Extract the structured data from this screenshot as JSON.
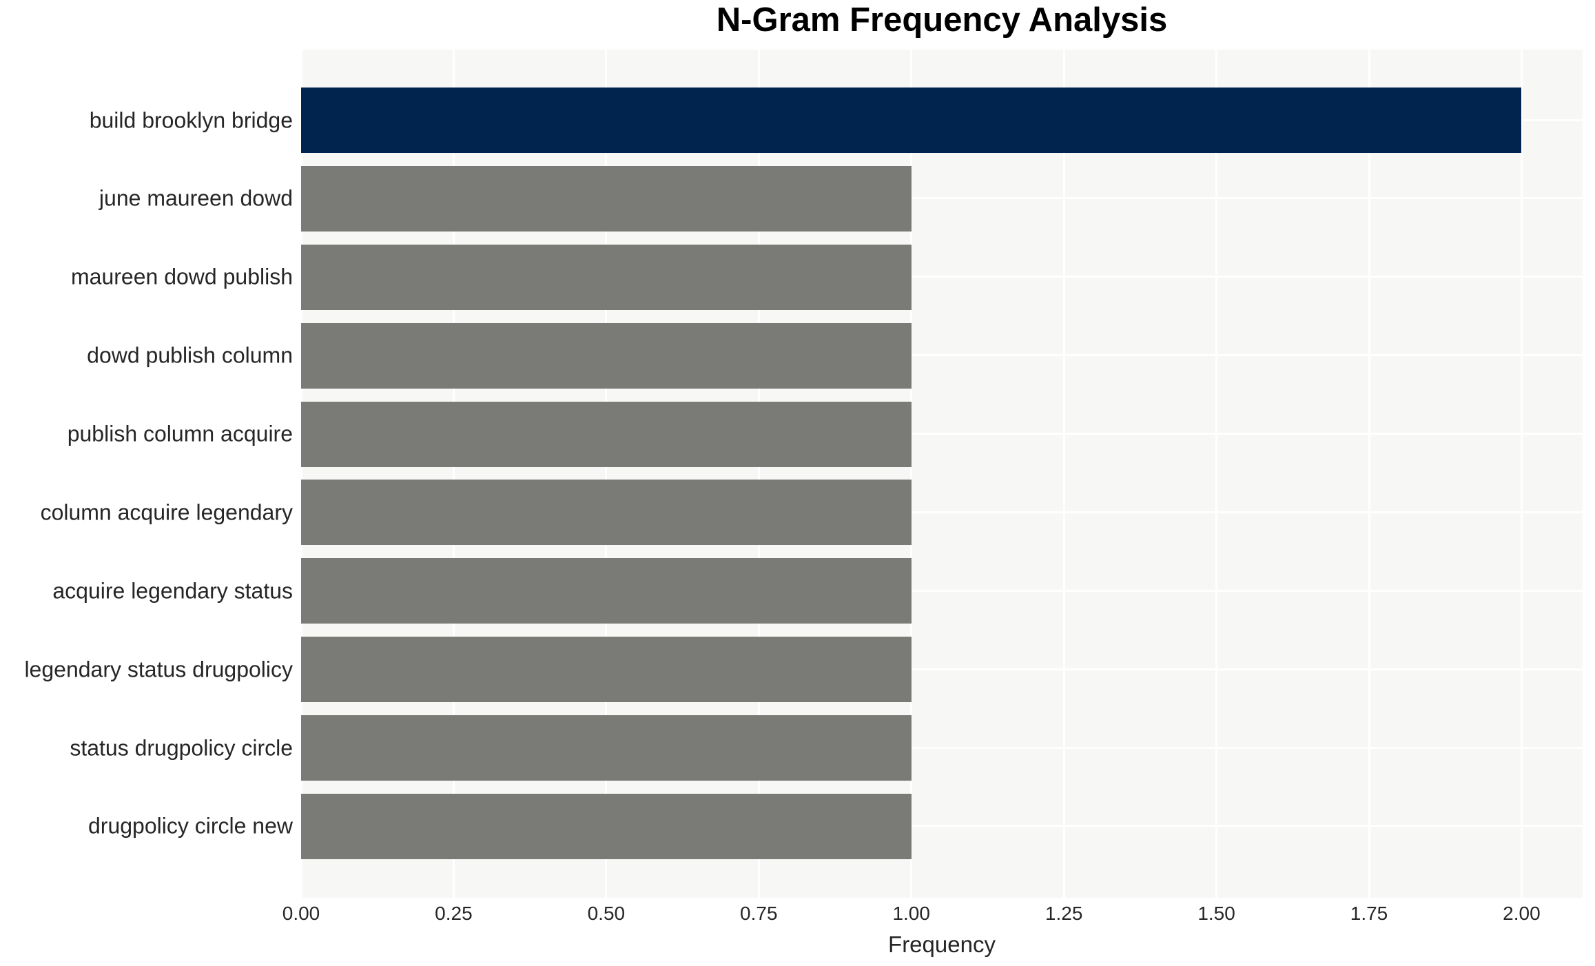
{
  "title": "N-Gram Frequency Analysis",
  "chart_data": {
    "type": "bar",
    "orientation": "horizontal",
    "title": "N-Gram Frequency Analysis",
    "xlabel": "Frequency",
    "ylabel": "",
    "categories": [
      "build brooklyn bridge",
      "june maureen dowd",
      "maureen dowd publish",
      "dowd publish column",
      "publish column acquire",
      "column acquire legendary",
      "acquire legendary status",
      "legendary status drugpolicy",
      "status drugpolicy circle",
      "drugpolicy circle new"
    ],
    "values": [
      2,
      1,
      1,
      1,
      1,
      1,
      1,
      1,
      1,
      1
    ],
    "bar_colors": [
      "#01244e",
      "#7a7a77",
      "#7a7a77",
      "#7a7a77",
      "#7a7a77",
      "#7a7a77",
      "#7a7a77",
      "#7a7a77",
      "#7a7a77",
      "#7a7a77"
    ],
    "xlim": [
      0,
      2.1
    ],
    "xticks": [
      0.0,
      0.25,
      0.5,
      0.75,
      1.0,
      1.25,
      1.5,
      1.75,
      2.0
    ],
    "xtick_labels": [
      "0.00",
      "0.25",
      "0.50",
      "0.75",
      "1.00",
      "1.25",
      "1.50",
      "1.75",
      "2.00"
    ],
    "grid": true,
    "legend": false,
    "colors": {
      "highlight_bar": "#01244e",
      "default_bar": "#7a7a77",
      "plot_background": "#f7f7f6",
      "grid_line": "#ffffff",
      "tick_text": "#262626",
      "title_text": "#000000"
    }
  }
}
